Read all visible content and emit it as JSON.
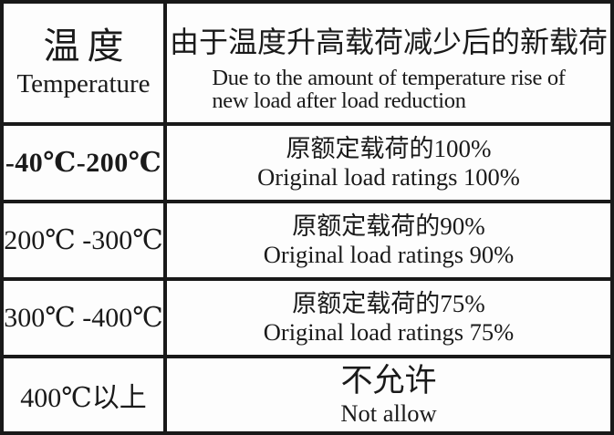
{
  "table": {
    "header": {
      "col1_zh": "温度",
      "col1_en": "Temperature",
      "col2_zh": "由于温度升高载荷减少后的新载荷",
      "col2_en_line1": "Due to the amount of temperature rise of",
      "col2_en_line2": "new load after load reduction"
    },
    "rows": [
      {
        "range": "-40℃-200℃",
        "zh": "原额定载荷的100%",
        "en": "Original load ratings 100%"
      },
      {
        "range": "200℃ -300℃",
        "zh": "原额定载荷的90%",
        "en": "Original load ratings 90%"
      },
      {
        "range": "300℃ -400℃",
        "zh": "原额定载荷的75%",
        "en": "Original load ratings 75%"
      },
      {
        "range": "400℃以上",
        "zh": "不允许",
        "en": "Not allow"
      }
    ]
  },
  "colors": {
    "border": "#191919",
    "text": "#1a1a1a",
    "background": "#fdfdfd"
  }
}
